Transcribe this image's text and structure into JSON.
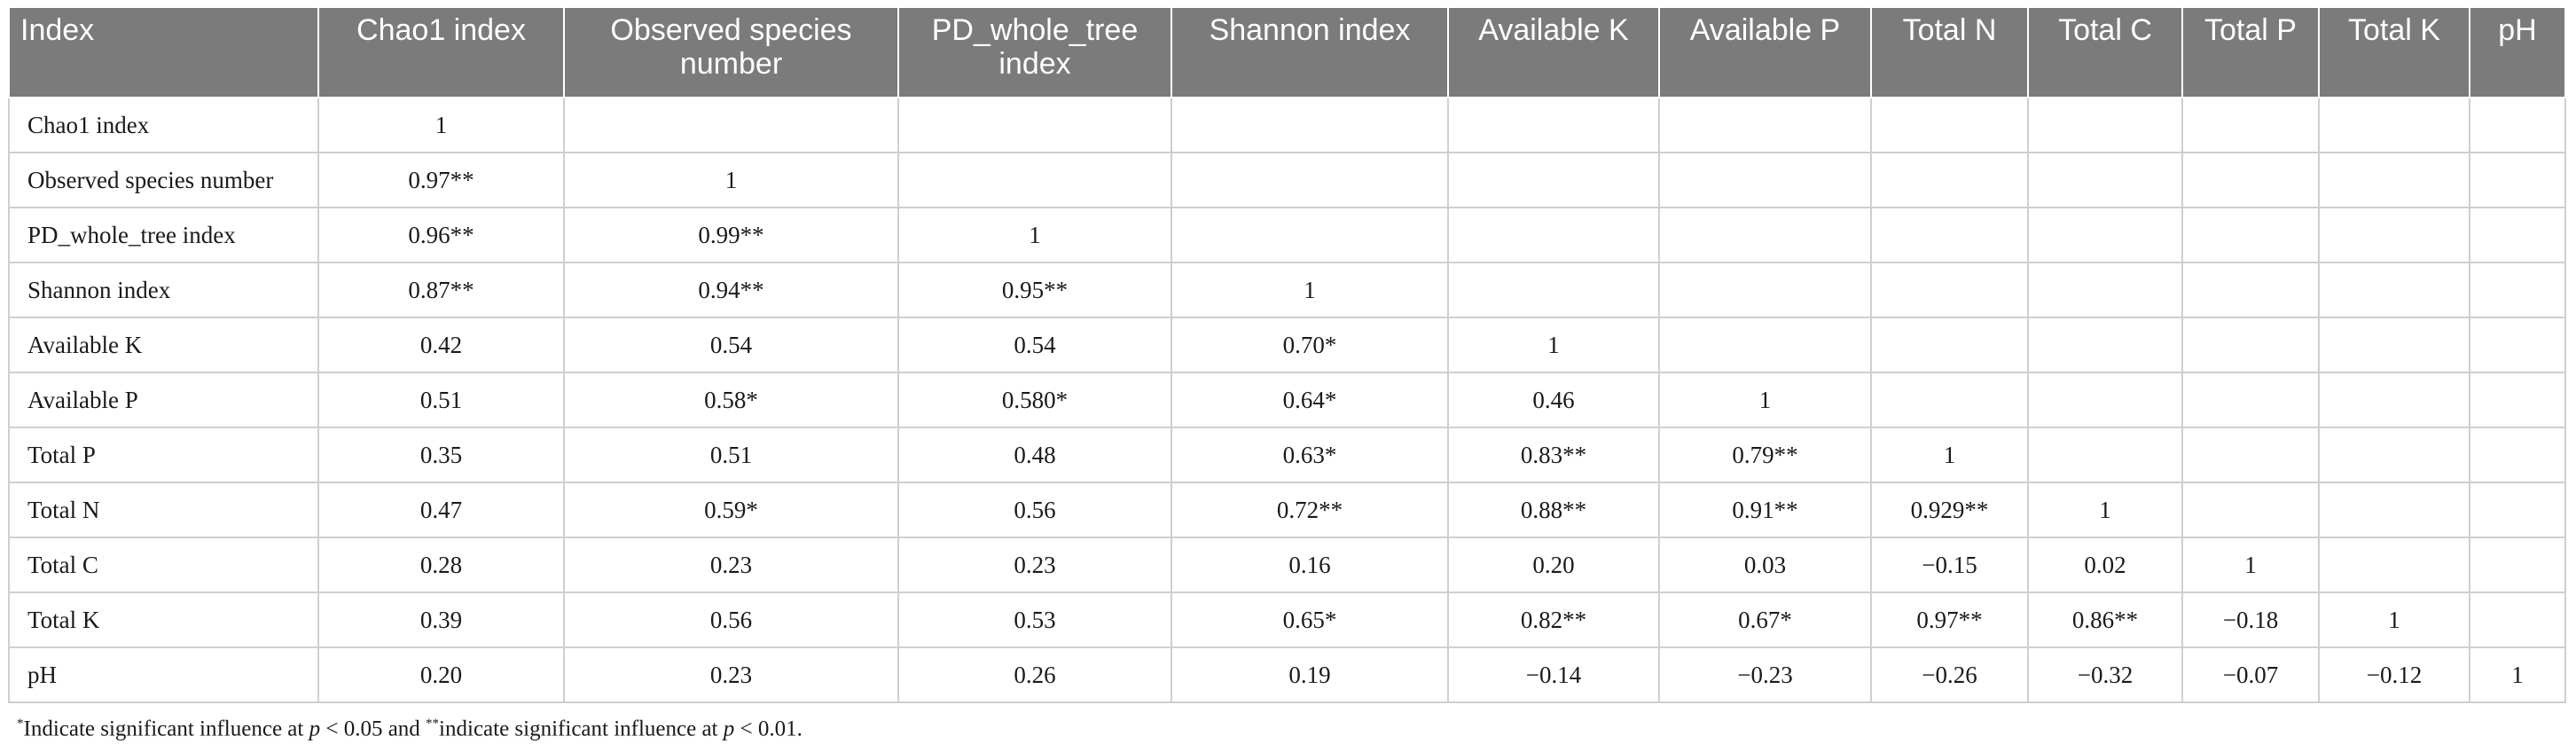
{
  "table": {
    "headers": [
      "Index",
      "Chao1 index",
      "Observed species number",
      "PD_whole_tree index",
      "Shannon index",
      "Available K",
      "Available P",
      "Total N",
      "Total C",
      "Total P",
      "Total K",
      "pH"
    ],
    "rows": [
      {
        "label": "Chao1 index",
        "cells": [
          "1",
          "",
          "",
          "",
          "",
          "",
          "",
          "",
          "",
          "",
          ""
        ]
      },
      {
        "label": "Observed species number",
        "cells": [
          "0.97**",
          "1",
          "",
          "",
          "",
          "",
          "",
          "",
          "",
          "",
          ""
        ]
      },
      {
        "label": "PD_whole_tree index",
        "cells": [
          "0.96**",
          "0.99**",
          "1",
          "",
          "",
          "",
          "",
          "",
          "",
          "",
          ""
        ]
      },
      {
        "label": "Shannon index",
        "cells": [
          "0.87**",
          "0.94**",
          "0.95**",
          "1",
          "",
          "",
          "",
          "",
          "",
          "",
          ""
        ]
      },
      {
        "label": "Available K",
        "cells": [
          "0.42",
          "0.54",
          "0.54",
          "0.70*",
          "1",
          "",
          "",
          "",
          "",
          "",
          ""
        ]
      },
      {
        "label": "Available P",
        "cells": [
          "0.51",
          "0.58*",
          "0.580*",
          "0.64*",
          "0.46",
          "1",
          "",
          "",
          "",
          "",
          ""
        ]
      },
      {
        "label": "Total P",
        "cells": [
          "0.35",
          "0.51",
          "0.48",
          "0.63*",
          "0.83**",
          "0.79**",
          "1",
          "",
          "",
          "",
          ""
        ]
      },
      {
        "label": "Total N",
        "cells": [
          "0.47",
          "0.59*",
          "0.56",
          "0.72**",
          "0.88**",
          "0.91**",
          "0.929**",
          "1",
          "",
          "",
          ""
        ]
      },
      {
        "label": "Total C",
        "cells": [
          "0.28",
          "0.23",
          "0.23",
          "0.16",
          "0.20",
          "0.03",
          "−0.15",
          "0.02",
          "1",
          "",
          ""
        ]
      },
      {
        "label": "Total K",
        "cells": [
          "0.39",
          "0.56",
          "0.53",
          "0.65*",
          "0.82**",
          "0.67*",
          "0.97**",
          "0.86**",
          "−0.18",
          "1",
          ""
        ]
      },
      {
        "label": "pH",
        "cells": [
          "0.20",
          "0.23",
          "0.26",
          "0.19",
          "−0.14",
          "−0.23",
          "−0.26",
          "−0.32",
          "−0.07",
          "−0.12",
          "1"
        ]
      }
    ]
  },
  "footnote": {
    "sig1_mark": "*",
    "sig1_text": "Indicate significant influence at ",
    "p_symbol": "p",
    "sig1_threshold": " < 0.05 and ",
    "sig2_mark": "**",
    "sig2_text": "indicate significant influence at ",
    "sig2_threshold": " < 0.01."
  }
}
